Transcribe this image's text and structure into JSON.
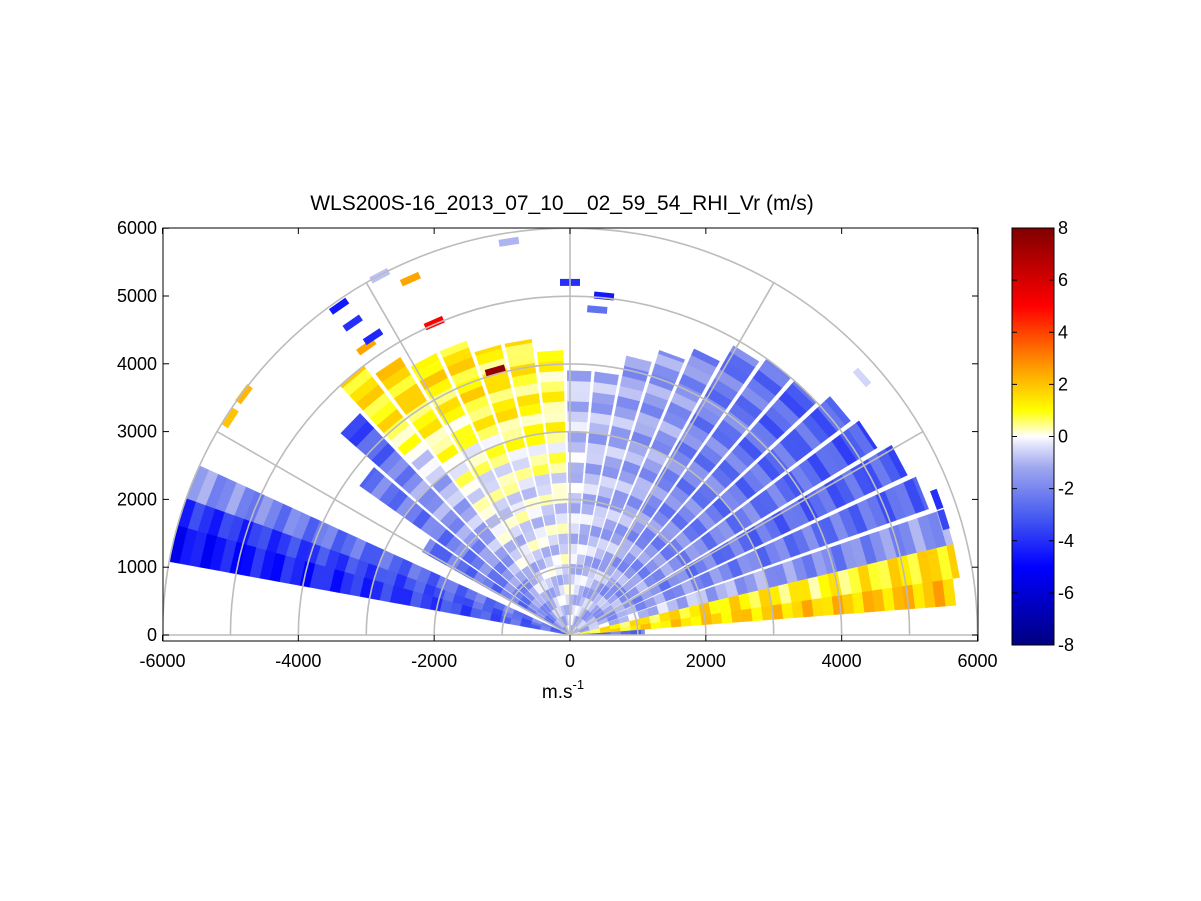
{
  "chart_data": {
    "type": "rhi-polar-scan",
    "title": "WLS200S-16_2013_07_10__02_59_54_RHI_Vr (m/s)",
    "xlabel": "m.s",
    "xlabel_superscript": "-1",
    "ylabel": "",
    "xlim": [
      -6000,
      6000
    ],
    "ylim": [
      0,
      6000
    ],
    "x_ticks": [
      -6000,
      -4000,
      -2000,
      0,
      2000,
      4000,
      6000
    ],
    "x_tick_labels": [
      "-6000",
      "-4000",
      "-2000",
      "0",
      "2000",
      "4000",
      "6000"
    ],
    "y_ticks": [
      0,
      1000,
      2000,
      3000,
      4000,
      5000,
      6000
    ],
    "y_tick_labels": [
      "0",
      "1000",
      "2000",
      "3000",
      "4000",
      "5000",
      "6000"
    ],
    "range_rings_m": [
      1000,
      2000,
      3000,
      4000,
      5000,
      6000
    ],
    "spoke_angles_deg": [
      0,
      30,
      60,
      90,
      120,
      150,
      180
    ],
    "grid": true,
    "colorbar": {
      "min": -8,
      "max": 8,
      "ticks": [
        -8,
        -6,
        -4,
        -2,
        0,
        2,
        4,
        6,
        8
      ],
      "tick_labels": [
        "-8",
        "-6",
        "-4",
        "-2",
        "0",
        "2",
        "4",
        "6",
        "8"
      ],
      "placement": "right",
      "colormap": [
        {
          "v": -8,
          "color": "#000080"
        },
        {
          "v": -5,
          "color": "#0000ff"
        },
        {
          "v": -3,
          "color": "#4a5ef0"
        },
        {
          "v": -1.2,
          "color": "#9ea6ee"
        },
        {
          "v": -0.3,
          "color": "#e2e4fb"
        },
        {
          "v": 0,
          "color": "#ffffff"
        },
        {
          "v": 0.3,
          "color": "#ffffb0"
        },
        {
          "v": 1,
          "color": "#ffff00"
        },
        {
          "v": 2.5,
          "color": "#ffa500"
        },
        {
          "v": 5,
          "color": "#ff0000"
        },
        {
          "v": 8,
          "color": "#800000"
        }
      ]
    },
    "scan_rays": [
      {
        "elev_deg": 3,
        "max_range_m": 1100,
        "vr_by_range_m": [
          [
            0,
            -2.5
          ],
          [
            1100,
            -2.5
          ]
        ]
      },
      {
        "elev_deg": 7,
        "max_range_m": 5700,
        "vr_by_range_m": [
          [
            0,
            1.2
          ],
          [
            3000,
            1.8
          ],
          [
            5700,
            2.0
          ]
        ]
      },
      {
        "elev_deg": 11,
        "max_range_m": 5800,
        "vr_by_range_m": [
          [
            0,
            1.0
          ],
          [
            2000,
            1.4
          ],
          [
            4000,
            0.9
          ],
          [
            5800,
            1.6
          ]
        ]
      },
      {
        "elev_deg": 16,
        "max_range_m": 5800,
        "vr_by_range_m": [
          [
            0,
            -0.5
          ],
          [
            2000,
            -1.0
          ],
          [
            4000,
            -2.0
          ],
          [
            5800,
            -1.5
          ]
        ]
      },
      {
        "elev_deg": 22,
        "max_range_m": 5600,
        "vr_by_range_m": [
          [
            0,
            -1.0
          ],
          [
            3000,
            -2.2
          ],
          [
            5600,
            -2.8
          ]
        ]
      },
      {
        "elev_deg": 28,
        "max_range_m": 5500,
        "vr_by_range_m": [
          [
            0,
            -1.2
          ],
          [
            3000,
            -2.6
          ],
          [
            5500,
            -3.0
          ]
        ]
      },
      {
        "elev_deg": 34,
        "max_range_m": 5300,
        "vr_by_range_m": [
          [
            0,
            -1.0
          ],
          [
            2500,
            -2.0
          ],
          [
            5300,
            -3.2
          ]
        ]
      },
      {
        "elev_deg": 40,
        "max_range_m": 5200,
        "vr_by_range_m": [
          [
            0,
            -1.0
          ],
          [
            2500,
            -2.2
          ],
          [
            5200,
            -3.0
          ]
        ]
      },
      {
        "elev_deg": 46,
        "max_range_m": 5000,
        "vr_by_range_m": [
          [
            0,
            -1.0
          ],
          [
            2500,
            -2.0
          ],
          [
            5000,
            -3.0
          ]
        ]
      },
      {
        "elev_deg": 52,
        "max_range_m": 5000,
        "vr_by_range_m": [
          [
            0,
            -1.0
          ],
          [
            2500,
            -2.0
          ],
          [
            5000,
            -2.5
          ]
        ]
      },
      {
        "elev_deg": 58,
        "max_range_m": 4900,
        "vr_by_range_m": [
          [
            0,
            -0.8
          ],
          [
            2500,
            -1.8
          ],
          [
            4900,
            -2.4
          ]
        ]
      },
      {
        "elev_deg": 64,
        "max_range_m": 4600,
        "vr_by_range_m": [
          [
            0,
            -0.8
          ],
          [
            4600,
            -1.8
          ]
        ]
      },
      {
        "elev_deg": 70,
        "max_range_m": 4400,
        "vr_by_range_m": [
          [
            0,
            -0.8
          ],
          [
            4400,
            -1.6
          ]
        ]
      },
      {
        "elev_deg": 76,
        "max_range_m": 4200,
        "vr_by_range_m": [
          [
            0,
            -0.6
          ],
          [
            4200,
            -1.4
          ]
        ]
      },
      {
        "elev_deg": 82,
        "max_range_m": 3900,
        "vr_by_range_m": [
          [
            0,
            -0.5
          ],
          [
            3900,
            -1.2
          ]
        ]
      },
      {
        "elev_deg": 88,
        "max_range_m": 3900,
        "vr_by_range_m": [
          [
            0,
            -0.5
          ],
          [
            3900,
            -0.8
          ]
        ]
      },
      {
        "elev_deg": 94,
        "max_range_m": 4200,
        "vr_by_range_m": [
          [
            0,
            -0.5
          ],
          [
            2000,
            -0.3
          ],
          [
            3000,
            0.6
          ],
          [
            4200,
            0.8
          ]
        ]
      },
      {
        "elev_deg": 100,
        "max_range_m": 4400,
        "vr_by_range_m": [
          [
            0,
            -0.6
          ],
          [
            2000,
            -0.4
          ],
          [
            3200,
            0.9
          ],
          [
            4400,
            1.0
          ]
        ]
      },
      {
        "elev_deg": 106,
        "max_range_m": 4400,
        "vr_by_range_m": [
          [
            0,
            -0.8
          ],
          [
            2500,
            -0.2
          ],
          [
            3500,
            1.2
          ],
          [
            4400,
            1.0
          ]
        ]
      },
      {
        "elev_deg": 112,
        "max_range_m": 4600,
        "vr_by_range_m": [
          [
            0,
            -1.0
          ],
          [
            2500,
            0.0
          ],
          [
            3800,
            1.2
          ],
          [
            4600,
            1.4
          ]
        ]
      },
      {
        "elev_deg": 118,
        "max_range_m": 4600,
        "vr_by_range_m": [
          [
            0,
            -1.2
          ],
          [
            2500,
            -0.2
          ],
          [
            3800,
            1.0
          ],
          [
            4600,
            1.5
          ]
        ]
      },
      {
        "elev_deg": 124,
        "max_range_m": 4800,
        "vr_by_range_m": [
          [
            0,
            -1.2
          ],
          [
            3000,
            0.2
          ],
          [
            4200,
            1.4
          ],
          [
            4800,
            1.6
          ]
        ]
      },
      {
        "elev_deg": 130,
        "max_range_m": 5000,
        "vr_by_range_m": [
          [
            0,
            -1.5
          ],
          [
            3000,
            -1.0
          ],
          [
            4000,
            1.0
          ],
          [
            5000,
            1.5
          ]
        ]
      },
      {
        "elev_deg": 136,
        "max_range_m": 4500,
        "vr_by_range_m": [
          [
            0,
            -1.8
          ],
          [
            3000,
            -1.5
          ],
          [
            4500,
            -3.5
          ]
        ]
      },
      {
        "elev_deg": 142,
        "max_range_m": 3800,
        "vr_by_range_m": [
          [
            0,
            -2.0
          ],
          [
            3800,
            -2.4
          ]
        ]
      },
      {
        "elev_deg": 148,
        "max_range_m": 2500,
        "vr_by_range_m": [
          [
            0,
            -2.2
          ],
          [
            2500,
            -2.6
          ]
        ]
      },
      {
        "elev_deg": 158,
        "max_range_m": 6000,
        "vr_by_range_m": [
          [
            0,
            -2.2
          ],
          [
            3000,
            -2.8
          ],
          [
            6000,
            -1.5
          ]
        ]
      },
      {
        "elev_deg": 163,
        "max_range_m": 6000,
        "vr_by_range_m": [
          [
            0,
            -2.5
          ],
          [
            3000,
            -3.5
          ],
          [
            6000,
            -4.0
          ]
        ]
      },
      {
        "elev_deg": 167,
        "max_range_m": 6000,
        "vr_by_range_m": [
          [
            0,
            -2.5
          ],
          [
            3000,
            -4.0
          ],
          [
            6000,
            -4.8
          ]
        ]
      }
    ],
    "isolated_returns": [
      {
        "x_m": -4800,
        "y_m": 3550,
        "vr": 2.2
      },
      {
        "x_m": -5000,
        "y_m": 3200,
        "vr": 2.0
      },
      {
        "x_m": -3400,
        "y_m": 4850,
        "vr": -4.5
      },
      {
        "x_m": -3200,
        "y_m": 4600,
        "vr": -4.0
      },
      {
        "x_m": -3000,
        "y_m": 4250,
        "vr": 2.5
      },
      {
        "x_m": -2900,
        "y_m": 4400,
        "vr": -4.2
      },
      {
        "x_m": -2350,
        "y_m": 5250,
        "vr": 2.5
      },
      {
        "x_m": -2000,
        "y_m": 4600,
        "vr": 5.0
      },
      {
        "x_m": -1100,
        "y_m": 3900,
        "vr": 7.5
      },
      {
        "x_m": -900,
        "y_m": 5800,
        "vr": -1.0
      },
      {
        "x_m": -2800,
        "y_m": 5300,
        "vr": -0.8
      },
      {
        "x_m": 0,
        "y_m": 5200,
        "vr": -4.0
      },
      {
        "x_m": 400,
        "y_m": 4800,
        "vr": -2.5
      },
      {
        "x_m": 500,
        "y_m": 5000,
        "vr": -4.5
      },
      {
        "x_m": 4300,
        "y_m": 3800,
        "vr": -0.5
      },
      {
        "x_m": 5400,
        "y_m": 2000,
        "vr": -4.0
      },
      {
        "x_m": 5500,
        "y_m": 1700,
        "vr": -3.5
      }
    ]
  }
}
